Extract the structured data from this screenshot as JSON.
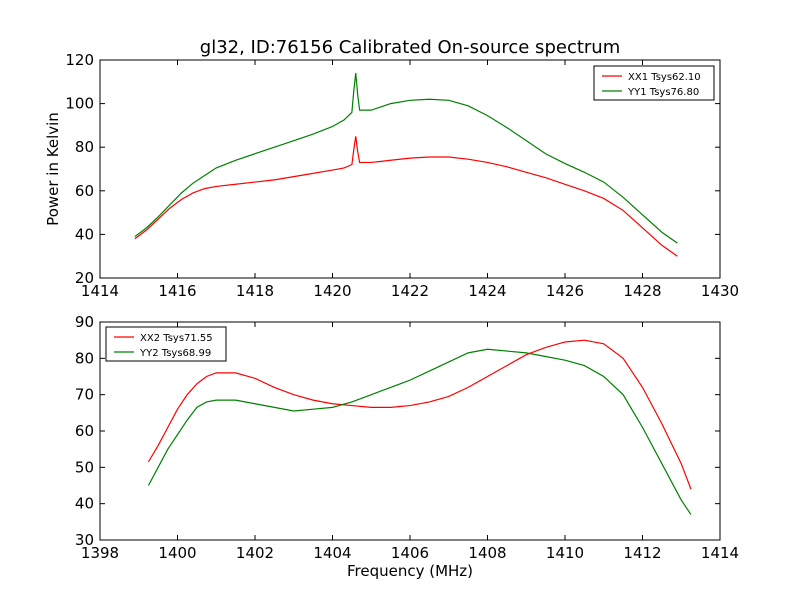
{
  "figure": {
    "title": "gl32, ID:76156 Calibrated On-source spectrum",
    "shared_xlabel": "Frequency (MHz)"
  },
  "chart_data": [
    {
      "type": "line",
      "title": "gl32, ID:76156 Calibrated On-source spectrum",
      "xlabel": "",
      "ylabel": "Power in Kelvin",
      "xlim": [
        1414,
        1430
      ],
      "ylim": [
        20,
        120
      ],
      "xticks": [
        1414,
        1416,
        1418,
        1420,
        1422,
        1424,
        1426,
        1428,
        1430
      ],
      "yticks": [
        20,
        40,
        60,
        80,
        100,
        120
      ],
      "grid": false,
      "legend_position": "top-right",
      "series": [
        {
          "name": "XX1 Tsys62.10",
          "color": "#ff0000",
          "points": [
            [
              1414.9,
              38
            ],
            [
              1415.2,
              42
            ],
            [
              1415.5,
              47
            ],
            [
              1415.8,
              52
            ],
            [
              1416.1,
              56
            ],
            [
              1416.4,
              59
            ],
            [
              1416.7,
              61
            ],
            [
              1417.0,
              62
            ],
            [
              1417.5,
              63
            ],
            [
              1418.0,
              64
            ],
            [
              1418.5,
              65
            ],
            [
              1419.0,
              66.5
            ],
            [
              1419.5,
              68
            ],
            [
              1420.0,
              69.5
            ],
            [
              1420.3,
              70.5
            ],
            [
              1420.5,
              72
            ],
            [
              1420.55,
              79
            ],
            [
              1420.6,
              85
            ],
            [
              1420.65,
              78
            ],
            [
              1420.7,
              73
            ],
            [
              1421.0,
              73
            ],
            [
              1421.5,
              74
            ],
            [
              1422.0,
              75
            ],
            [
              1422.5,
              75.5
            ],
            [
              1423.0,
              75.5
            ],
            [
              1423.5,
              74.5
            ],
            [
              1424.0,
              73
            ],
            [
              1424.5,
              71
            ],
            [
              1425.0,
              68.5
            ],
            [
              1425.5,
              66
            ],
            [
              1426.0,
              63
            ],
            [
              1426.5,
              60
            ],
            [
              1427.0,
              56.5
            ],
            [
              1427.5,
              51
            ],
            [
              1428.0,
              43
            ],
            [
              1428.5,
              35
            ],
            [
              1428.9,
              30
            ]
          ]
        },
        {
          "name": "YY1 Tsys76.80",
          "color": "#008000",
          "points": [
            [
              1414.9,
              39
            ],
            [
              1415.2,
              43
            ],
            [
              1415.5,
              48
            ],
            [
              1415.8,
              53.5
            ],
            [
              1416.1,
              59
            ],
            [
              1416.4,
              63.5
            ],
            [
              1416.7,
              67
            ],
            [
              1417.0,
              70.5
            ],
            [
              1417.5,
              74
            ],
            [
              1418.0,
              77
            ],
            [
              1418.5,
              80
            ],
            [
              1419.0,
              83
            ],
            [
              1419.5,
              86
            ],
            [
              1420.0,
              89.5
            ],
            [
              1420.3,
              92.5
            ],
            [
              1420.5,
              96
            ],
            [
              1420.55,
              106
            ],
            [
              1420.6,
              114
            ],
            [
              1420.65,
              104
            ],
            [
              1420.7,
              97
            ],
            [
              1421.0,
              97
            ],
            [
              1421.5,
              100
            ],
            [
              1422.0,
              101.5
            ],
            [
              1422.5,
              102
            ],
            [
              1423.0,
              101.5
            ],
            [
              1423.5,
              99
            ],
            [
              1424.0,
              94.5
            ],
            [
              1424.5,
              89
            ],
            [
              1425.0,
              83
            ],
            [
              1425.5,
              77
            ],
            [
              1426.0,
              72.5
            ],
            [
              1426.5,
              68.5
            ],
            [
              1427.0,
              64
            ],
            [
              1427.5,
              57
            ],
            [
              1428.0,
              49
            ],
            [
              1428.5,
              41
            ],
            [
              1428.9,
              36
            ]
          ]
        }
      ]
    },
    {
      "type": "line",
      "title": "",
      "xlabel": "Frequency (MHz)",
      "ylabel": "",
      "xlim": [
        1398,
        1414
      ],
      "ylim": [
        30,
        90
      ],
      "xticks": [
        1398,
        1400,
        1402,
        1404,
        1406,
        1408,
        1410,
        1412,
        1414
      ],
      "yticks": [
        30,
        40,
        50,
        60,
        70,
        80,
        90
      ],
      "grid": false,
      "legend_position": "top-left",
      "series": [
        {
          "name": "XX2 Tsys71.55",
          "color": "#ff0000",
          "points": [
            [
              1399.25,
              51.5
            ],
            [
              1399.5,
              56
            ],
            [
              1399.75,
              61
            ],
            [
              1400.0,
              66
            ],
            [
              1400.25,
              70
            ],
            [
              1400.5,
              73
            ],
            [
              1400.75,
              75
            ],
            [
              1401.0,
              76
            ],
            [
              1401.5,
              76
            ],
            [
              1402.0,
              74.5
            ],
            [
              1402.5,
              72
            ],
            [
              1403.0,
              70
            ],
            [
              1403.5,
              68.5
            ],
            [
              1404.0,
              67.5
            ],
            [
              1404.5,
              67
            ],
            [
              1405.0,
              66.5
            ],
            [
              1405.5,
              66.5
            ],
            [
              1406.0,
              67
            ],
            [
              1406.5,
              68
            ],
            [
              1407.0,
              69.5
            ],
            [
              1407.5,
              72
            ],
            [
              1408.0,
              75
            ],
            [
              1408.5,
              78
            ],
            [
              1409.0,
              81
            ],
            [
              1409.5,
              83
            ],
            [
              1410.0,
              84.5
            ],
            [
              1410.5,
              85
            ],
            [
              1411.0,
              84
            ],
            [
              1411.5,
              80
            ],
            [
              1412.0,
              72
            ],
            [
              1412.5,
              62
            ],
            [
              1413.0,
              51
            ],
            [
              1413.25,
              44
            ]
          ]
        },
        {
          "name": "YY2 Tsys68.99",
          "color": "#008000",
          "points": [
            [
              1399.25,
              45
            ],
            [
              1399.5,
              50
            ],
            [
              1399.75,
              55
            ],
            [
              1400.0,
              59
            ],
            [
              1400.25,
              63
            ],
            [
              1400.5,
              66.5
            ],
            [
              1400.75,
              68
            ],
            [
              1401.0,
              68.5
            ],
            [
              1401.5,
              68.5
            ],
            [
              1402.0,
              67.5
            ],
            [
              1402.5,
              66.5
            ],
            [
              1403.0,
              65.5
            ],
            [
              1403.5,
              66
            ],
            [
              1404.0,
              66.5
            ],
            [
              1404.5,
              68
            ],
            [
              1405.0,
              70
            ],
            [
              1405.5,
              72
            ],
            [
              1406.0,
              74
            ],
            [
              1406.5,
              76.5
            ],
            [
              1407.0,
              79
            ],
            [
              1407.5,
              81.5
            ],
            [
              1408.0,
              82.5
            ],
            [
              1408.5,
              82
            ],
            [
              1409.0,
              81.5
            ],
            [
              1409.5,
              80.5
            ],
            [
              1410.0,
              79.5
            ],
            [
              1410.5,
              78
            ],
            [
              1411.0,
              75
            ],
            [
              1411.5,
              70
            ],
            [
              1412.0,
              61
            ],
            [
              1412.5,
              51
            ],
            [
              1413.0,
              41
            ],
            [
              1413.25,
              37
            ]
          ]
        }
      ]
    }
  ]
}
